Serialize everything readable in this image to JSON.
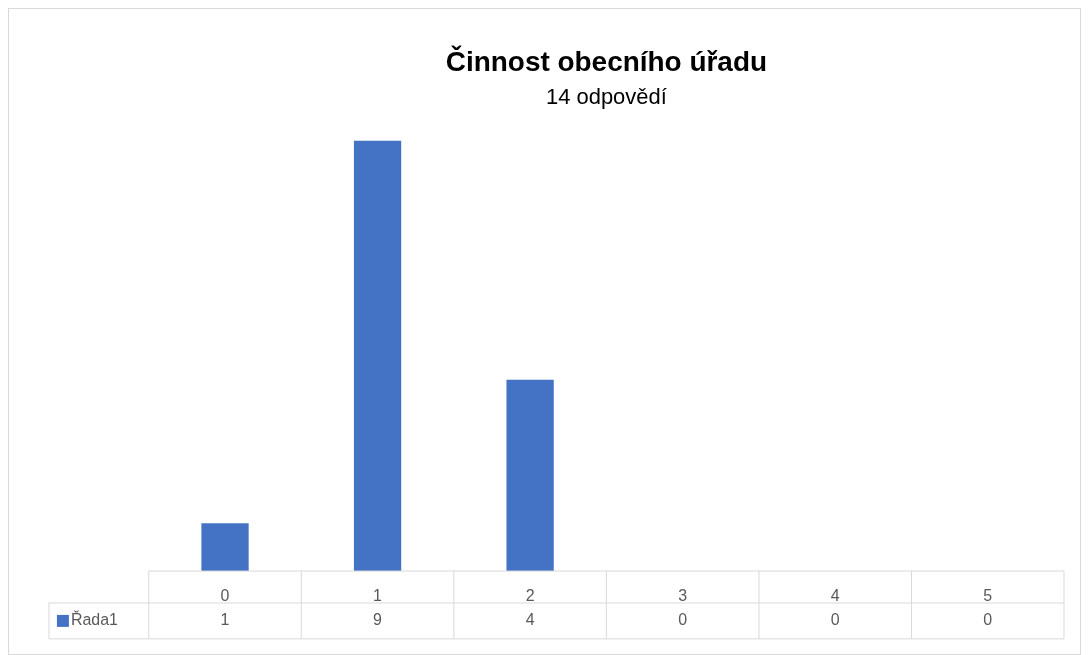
{
  "chart_data": {
    "type": "bar",
    "title": "Činnost obecního úřadu",
    "subtitle": "14 odpovědí",
    "categories": [
      "0",
      "1",
      "2",
      "3",
      "4",
      "5"
    ],
    "series": [
      {
        "name": "Řada1",
        "color": "#4472c4",
        "values": [
          1,
          9,
          4,
          0,
          0,
          0
        ]
      }
    ],
    "data_labels": true
  }
}
